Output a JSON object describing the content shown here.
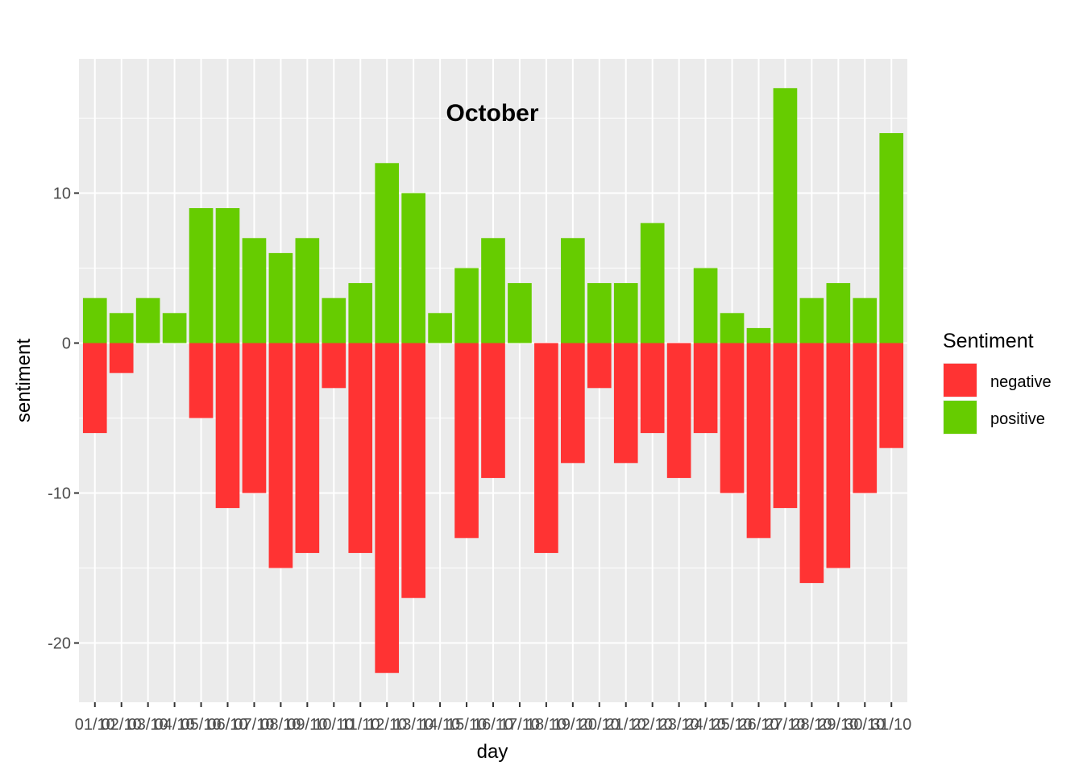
{
  "chart_data": {
    "type": "bar",
    "stacked": "diverging",
    "title": "October",
    "xlabel": "day",
    "ylabel": "sentiment",
    "categories": [
      "01/10",
      "02/10",
      "03/10",
      "04/10",
      "05/10",
      "06/10",
      "07/10",
      "08/10",
      "09/10",
      "10/10",
      "11/10",
      "12/10",
      "13/10",
      "14/10",
      "15/10",
      "16/10",
      "17/10",
      "18/10",
      "19/10",
      "20/10",
      "21/10",
      "22/10",
      "23/10",
      "24/10",
      "25/10",
      "26/10",
      "27/10",
      "28/10",
      "29/10",
      "30/10",
      "31/10"
    ],
    "series": [
      {
        "name": "negative",
        "color": "#ff3333",
        "values": [
          -6,
          -2,
          0,
          0,
          -5,
          -11,
          -10,
          -15,
          -14,
          -3,
          -14,
          -22,
          -17,
          0,
          -13,
          -9,
          0,
          -14,
          -8,
          -3,
          -8,
          -6,
          -9,
          -6,
          -10,
          -13,
          -11,
          -16,
          -15,
          -10,
          -7
        ]
      },
      {
        "name": "positive",
        "color": "#66cc00",
        "values": [
          3,
          2,
          3,
          2,
          9,
          9,
          7,
          6,
          7,
          3,
          4,
          12,
          10,
          2,
          5,
          7,
          4,
          0,
          7,
          4,
          4,
          8,
          0,
          5,
          2,
          1,
          17,
          3,
          4,
          3,
          14
        ]
      }
    ],
    "yticks": [
      -20,
      -10,
      0,
      10
    ],
    "ylim": [
      -23.95,
      18.95
    ],
    "grid": true,
    "legend": {
      "title": "Sentiment",
      "position": "right",
      "items": [
        "negative",
        "positive"
      ]
    },
    "panel_background": "#ebebeb",
    "grid_color": "#ffffff"
  }
}
